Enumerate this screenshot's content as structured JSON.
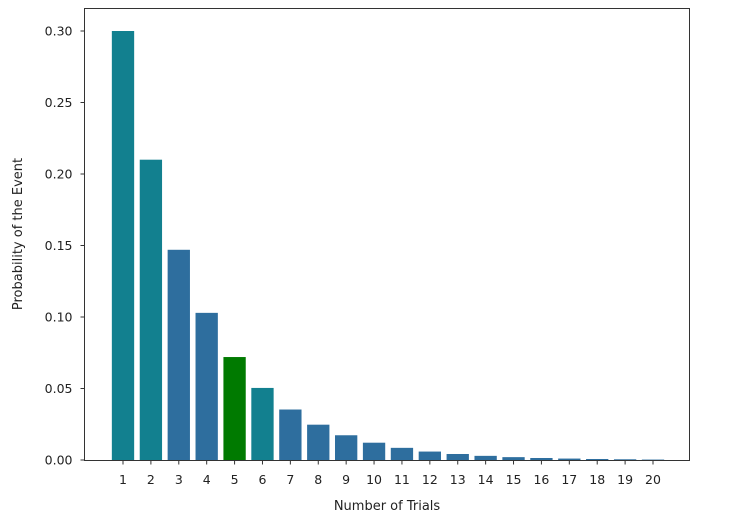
{
  "chart_data": {
    "type": "bar",
    "title": "",
    "xlabel": "Number of Trials",
    "ylabel": "Probability of the Event",
    "categories": [
      "1",
      "2",
      "3",
      "4",
      "5",
      "6",
      "7",
      "8",
      "9",
      "10",
      "11",
      "12",
      "13",
      "14",
      "15",
      "16",
      "17",
      "18",
      "19",
      "20"
    ],
    "values": [
      0.3,
      0.21,
      0.147,
      0.1029,
      0.072,
      0.0504,
      0.0353,
      0.0247,
      0.0173,
      0.0121,
      0.0085,
      0.0059,
      0.0042,
      0.0029,
      0.002,
      0.0014,
      0.001,
      0.0007,
      0.0005,
      0.0003
    ],
    "highlight_index": 4,
    "colors": {
      "bar": "#2e6e9e",
      "bar_alt": "#12808f",
      "highlight": "#007a00"
    },
    "ylim": [
      0,
      0.315
    ],
    "yticks": [
      0.0,
      0.05,
      0.1,
      0.15,
      0.2,
      0.25,
      0.3
    ],
    "ytick_labels": [
      "0.00",
      "0.05",
      "0.10",
      "0.15",
      "0.20",
      "0.25",
      "0.30"
    ],
    "grid": false,
    "legend": null
  }
}
